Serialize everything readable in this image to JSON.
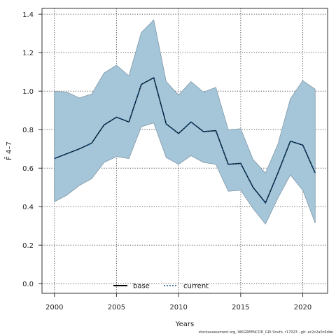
{
  "chart_data": {
    "type": "area",
    "xlabel": "Years",
    "ylabel": "F̄ 4–7",
    "xlim": [
      1999,
      2022
    ],
    "ylim": [
      -0.05,
      1.43
    ],
    "x_ticks": [
      2000,
      2005,
      2010,
      2015,
      2020
    ],
    "y_ticks": [
      0.0,
      0.2,
      0.4,
      0.6,
      0.8,
      1.0,
      1.2,
      1.4
    ],
    "grid": true,
    "legend_position": "bottom-center",
    "x": [
      2000,
      2001,
      2002,
      2003,
      2004,
      2005,
      2006,
      2007,
      2008,
      2009,
      2010,
      2011,
      2012,
      2013,
      2014,
      2015,
      2016,
      2017,
      2018,
      2019,
      2020,
      2021
    ],
    "band": {
      "color": "#a5c6d8",
      "upper": [
        1.0,
        0.995,
        0.965,
        0.985,
        1.095,
        1.135,
        1.08,
        1.305,
        1.37,
        1.05,
        0.98,
        1.05,
        0.995,
        1.02,
        0.8,
        0.805,
        0.645,
        0.575,
        0.725,
        0.96,
        1.055,
        1.01
      ],
      "lower": [
        0.425,
        0.46,
        0.51,
        0.545,
        0.63,
        0.66,
        0.65,
        0.815,
        0.835,
        0.655,
        0.62,
        0.665,
        0.63,
        0.62,
        0.48,
        0.485,
        0.39,
        0.31,
        0.445,
        0.565,
        0.485,
        0.315
      ]
    },
    "series": [
      {
        "name": "base",
        "style": "solid",
        "color": "#000000",
        "values": [
          0.65,
          0.675,
          0.7,
          0.73,
          0.825,
          0.865,
          0.84,
          1.035,
          1.07,
          0.83,
          0.78,
          0.84,
          0.79,
          0.795,
          0.62,
          0.625,
          0.5,
          0.42,
          0.575,
          0.74,
          0.72,
          0.575
        ]
      },
      {
        "name": "current",
        "style": "dotted",
        "color": "#0b4f8a",
        "values": [
          0.65,
          0.675,
          0.7,
          0.73,
          0.825,
          0.865,
          0.84,
          1.035,
          1.07,
          0.83,
          0.78,
          0.84,
          0.79,
          0.795,
          0.62,
          0.625,
          0.5,
          0.42,
          0.575,
          0.74,
          0.72,
          0.575
        ]
      }
    ]
  },
  "footer": {
    "text": "stockassessment.org, WKGREENCOD_GRI South, r17023 , git: ec2c2a0c6dde"
  }
}
